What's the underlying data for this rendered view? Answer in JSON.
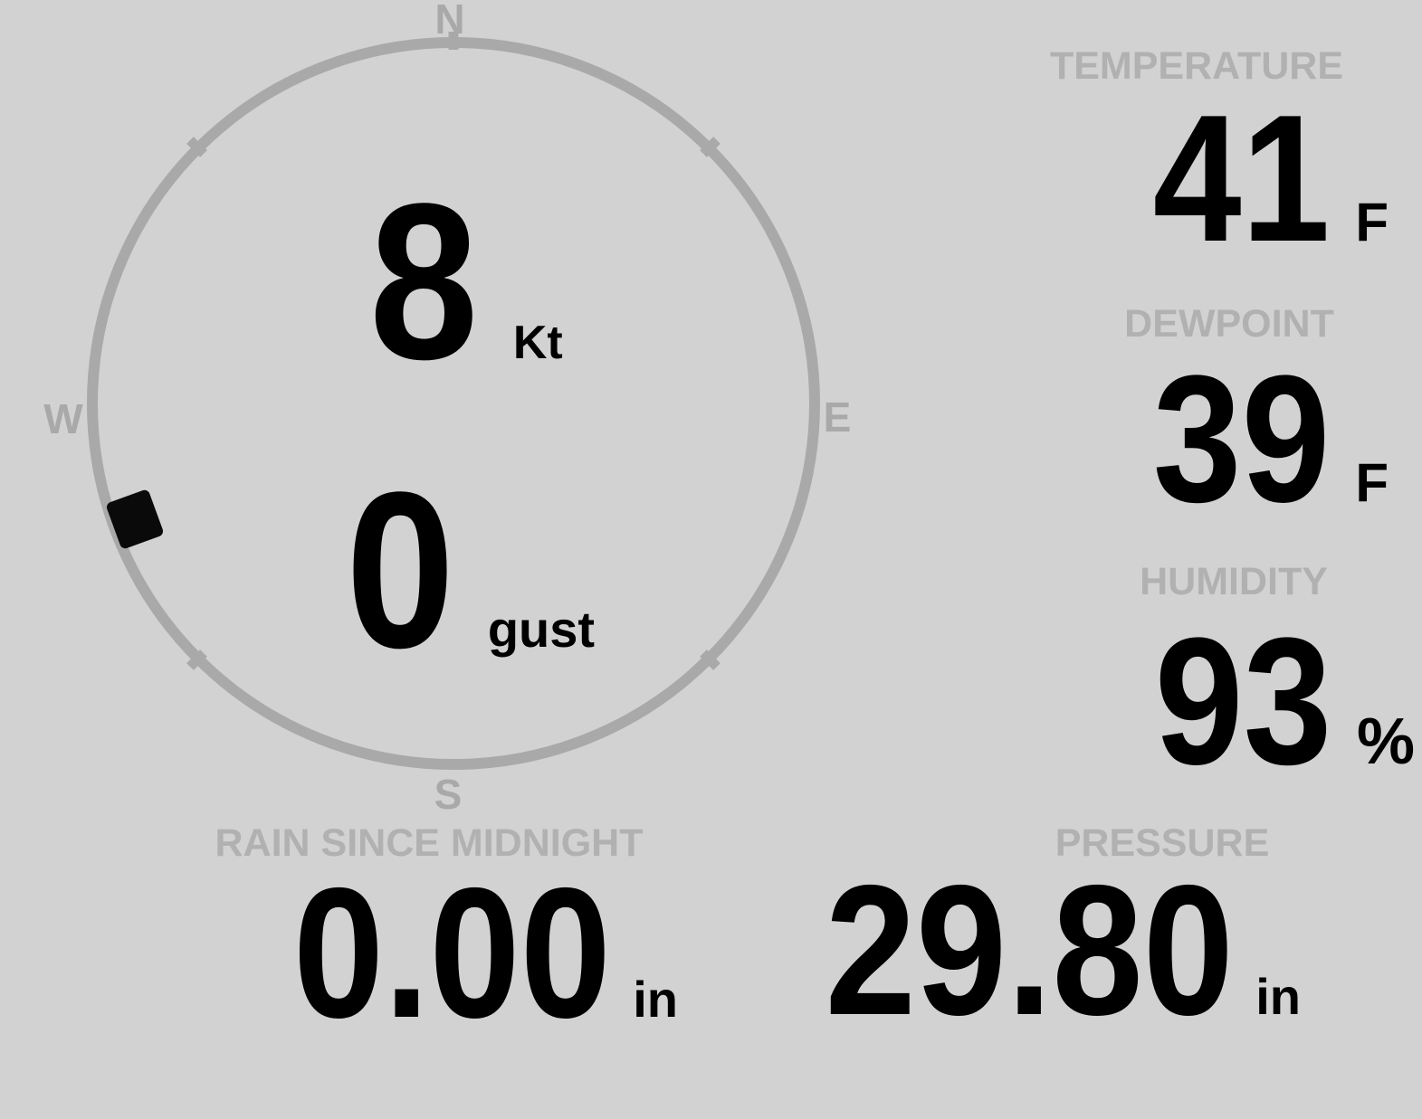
{
  "theme": {
    "background": "#d2d2d2",
    "ring_color": "#a9a9a9",
    "label_color": "#b1b1b1",
    "value_color": "#000000",
    "marker_color": "#0a0a0a"
  },
  "compass": {
    "directions": {
      "north": "N",
      "east": "E",
      "south": "S",
      "west": "W"
    },
    "wind_speed": {
      "value": "8",
      "unit": "Kt"
    },
    "wind_gust": {
      "value": "0",
      "unit": "gust"
    },
    "wind_direction_deg": 250
  },
  "metrics": {
    "temperature": {
      "label": "TEMPERATURE",
      "value": "41",
      "unit": "F"
    },
    "dewpoint": {
      "label": "DEWPOINT",
      "value": "39",
      "unit": "F"
    },
    "humidity": {
      "label": "HUMIDITY",
      "value": "93",
      "unit": "%"
    },
    "pressure": {
      "label": "PRESSURE",
      "value": "29.80",
      "unit": "in"
    },
    "rain_since_midnight": {
      "label": "RAIN SINCE MIDNIGHT",
      "value": "0.00",
      "unit": "in"
    }
  }
}
